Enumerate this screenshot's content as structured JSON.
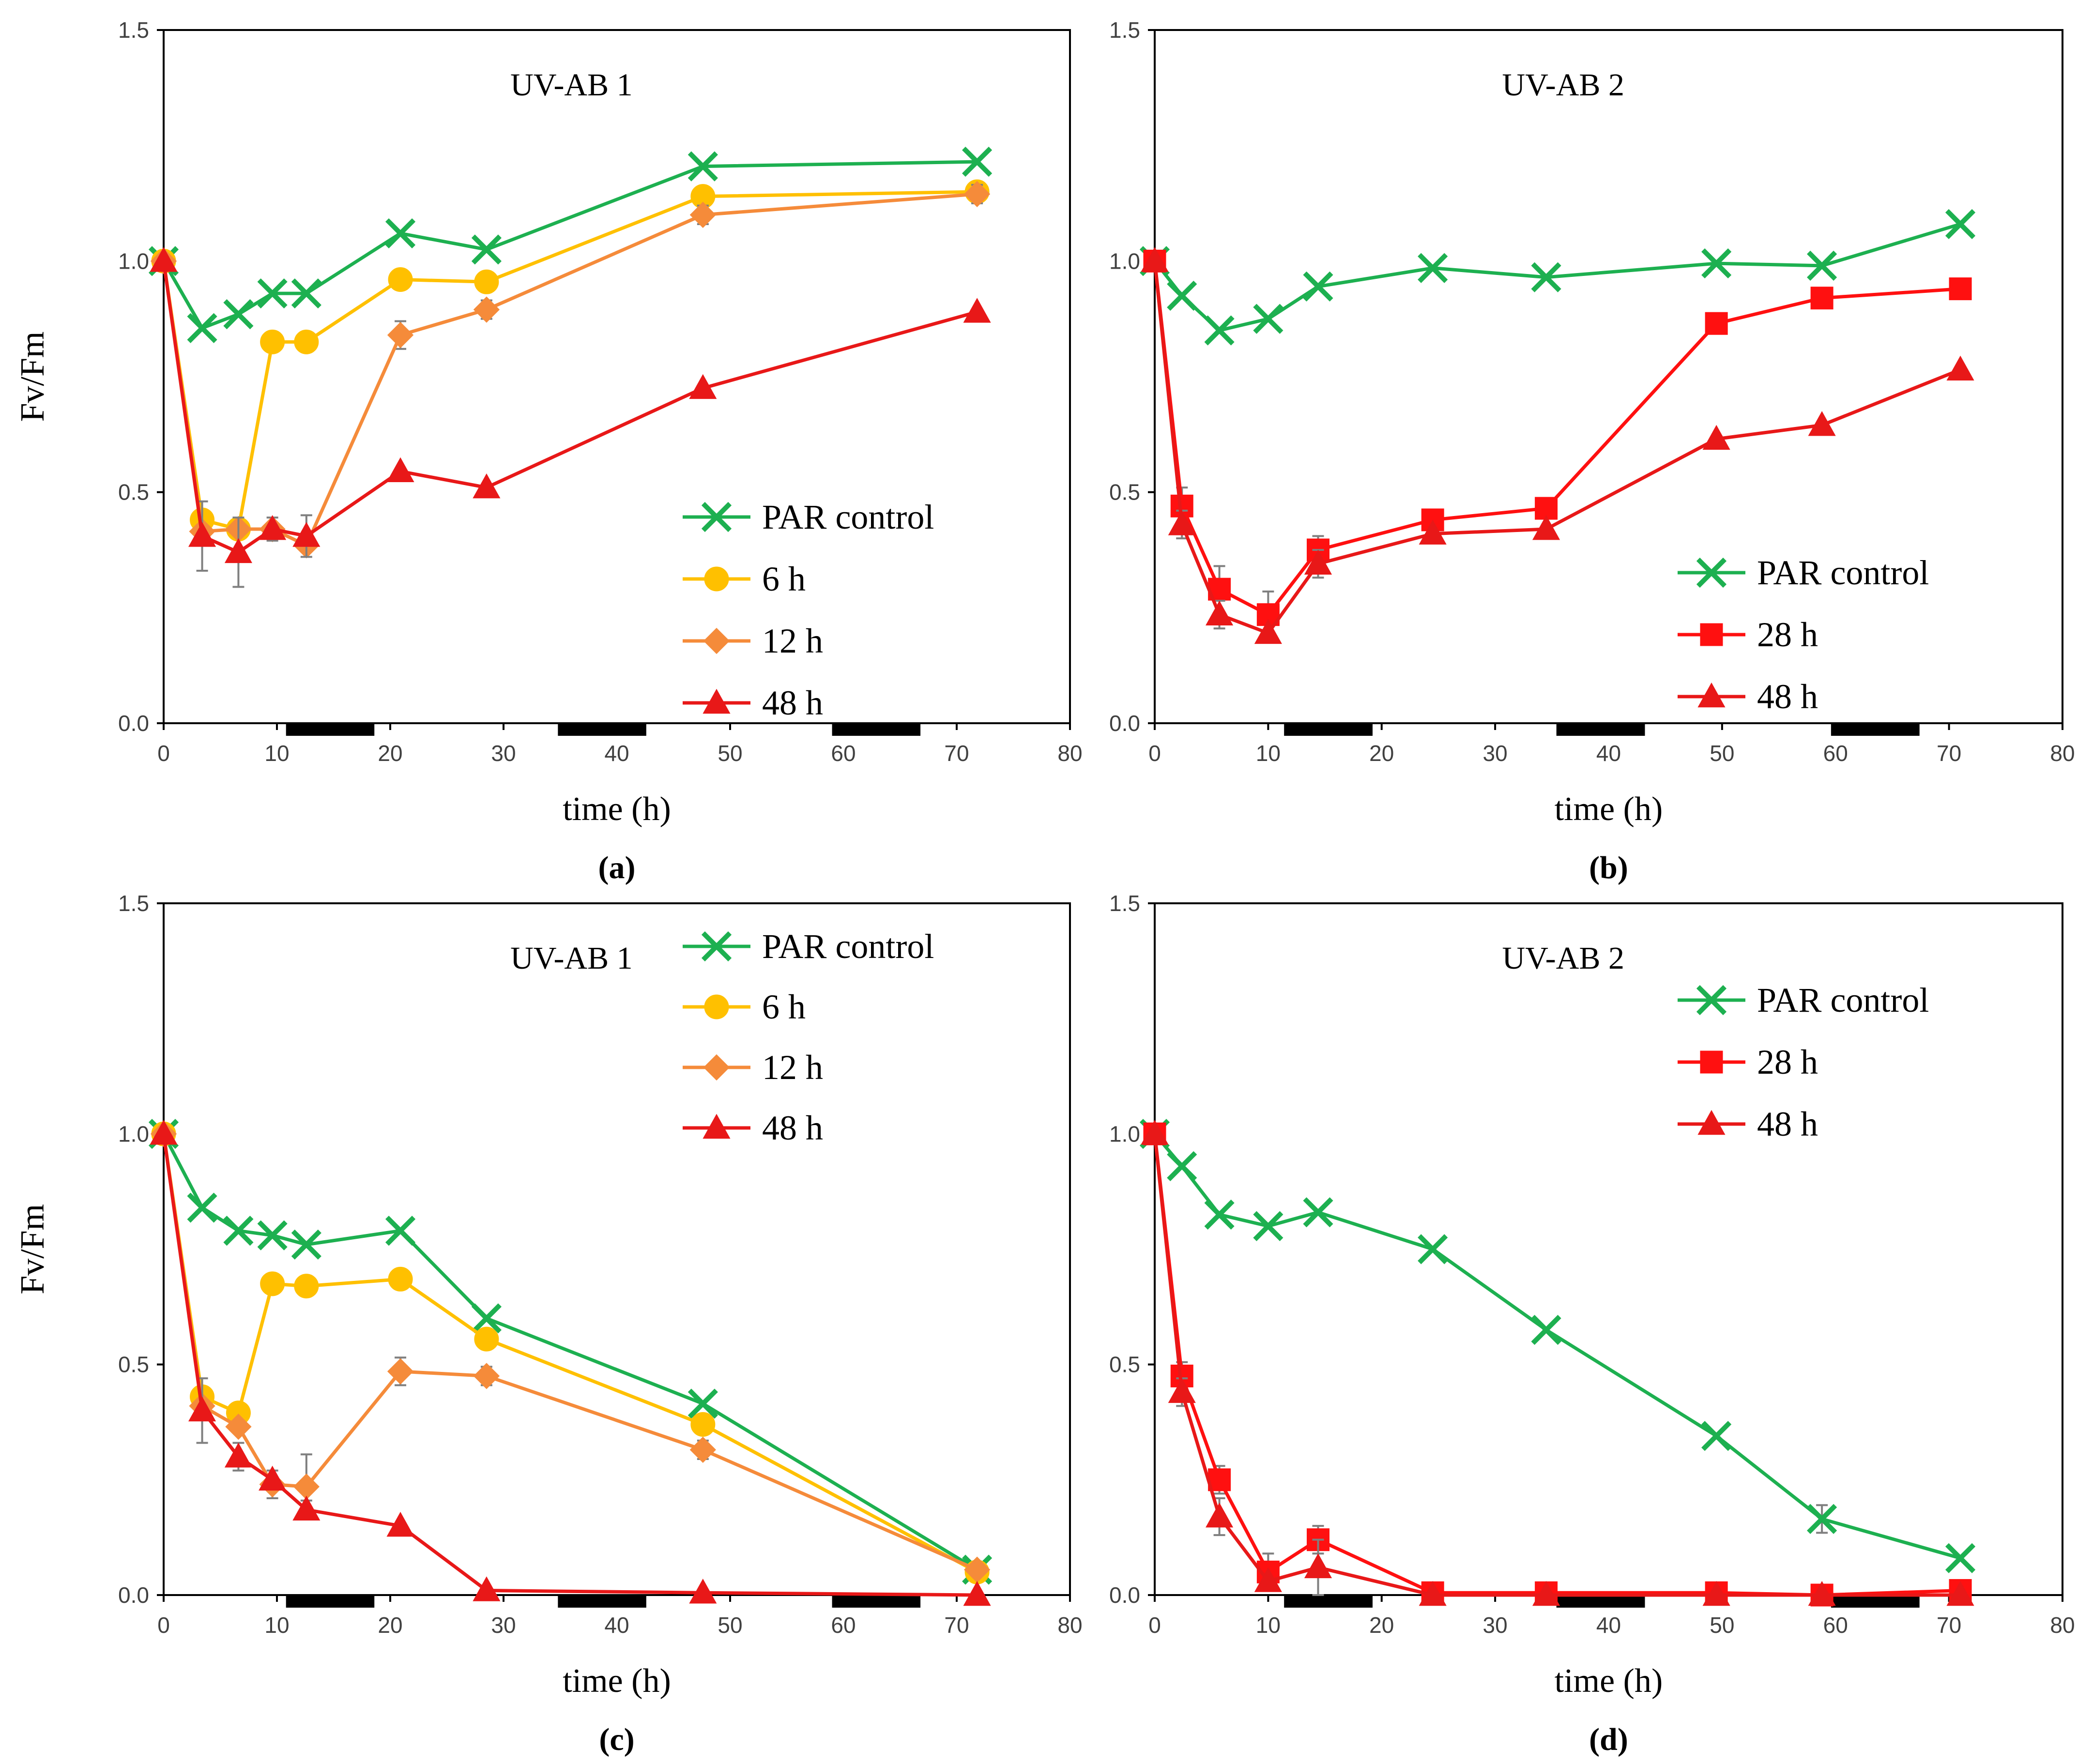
{
  "figure": {
    "colors": {
      "PAR control": "#1db050",
      "6 h": "#ffc000",
      "12 h": "#f58b3a",
      "28 h": "#ff1010",
      "48 h": "#e81818",
      "error": "#7f7f7f",
      "dark_bar": "#000000"
    }
  },
  "chart_data": [
    {
      "type": "line",
      "panel_label": "(a)",
      "title": "UV-AB 1",
      "xlabel": "time (h)",
      "ylabel": "Fv/Fm",
      "xlim": [
        0,
        80
      ],
      "ylim": [
        0,
        1.5
      ],
      "xticks": [
        "0",
        "10",
        "20",
        "30",
        "40",
        "50",
        "60",
        "70",
        "80"
      ],
      "yticks": [
        "0.0",
        "0.5",
        "1.0",
        "1.5"
      ],
      "legend_position": "bottom-right",
      "dark_periods": [
        [
          10.8,
          18.6
        ],
        [
          34.8,
          42.6
        ],
        [
          59.0,
          66.8
        ]
      ],
      "series": [
        {
          "name": "PAR control",
          "marker": "x",
          "x": [
            0,
            3.4,
            6.6,
            9.6,
            12.6,
            20.9,
            28.5,
            47.6,
            71.8
          ],
          "values": [
            1.0,
            0.855,
            0.885,
            0.93,
            0.93,
            1.06,
            1.025,
            1.205,
            1.215
          ]
        },
        {
          "name": "6 h",
          "marker": "circle",
          "x": [
            0,
            3.4,
            6.6,
            9.6,
            12.6,
            20.9,
            28.5,
            47.6,
            71.8
          ],
          "values": [
            1.0,
            0.44,
            0.42,
            0.825,
            0.825,
            0.96,
            0.955,
            1.14,
            1.15
          ]
        },
        {
          "name": "12 h",
          "marker": "diamond",
          "x": [
            0,
            3.4,
            6.6,
            9.6,
            12.6,
            20.9,
            28.5,
            47.6,
            71.8
          ],
          "values": [
            1.0,
            0.415,
            0.42,
            0.42,
            0.385,
            0.84,
            0.895,
            1.1,
            1.145
          ],
          "errors": [
            0,
            0,
            0,
            0,
            0,
            0.03,
            0.02,
            0.02,
            0.02
          ]
        },
        {
          "name": "48 h",
          "marker": "triangle",
          "x": [
            0,
            3.4,
            6.6,
            9.6,
            12.6,
            20.9,
            28.5,
            47.6,
            71.8
          ],
          "values": [
            1.0,
            0.405,
            0.37,
            0.42,
            0.405,
            0.545,
            0.51,
            0.725,
            0.89
          ],
          "errors": [
            0,
            0.075,
            0.075,
            0.025,
            0.045,
            0,
            0,
            0,
            0
          ]
        }
      ]
    },
    {
      "type": "line",
      "panel_label": "(b)",
      "title": "UV-AB 2",
      "xlabel": "time (h)",
      "ylabel": "",
      "xlim": [
        0,
        80
      ],
      "ylim": [
        0,
        1.5
      ],
      "xticks": [
        "0",
        "10",
        "20",
        "30",
        "40",
        "50",
        "60",
        "70",
        "80"
      ],
      "yticks": [
        "0.0",
        "0.5",
        "1.0",
        "1.5"
      ],
      "legend_position": "bottom-right",
      "dark_periods": [
        [
          11.4,
          19.2
        ],
        [
          35.4,
          43.2
        ],
        [
          59.6,
          67.4
        ]
      ],
      "series": [
        {
          "name": "PAR control",
          "marker": "x",
          "x": [
            0,
            2.4,
            5.7,
            10.0,
            14.4,
            24.5,
            34.5,
            49.5,
            58.8,
            71.0
          ],
          "values": [
            1.0,
            0.925,
            0.85,
            0.875,
            0.945,
            0.985,
            0.965,
            0.995,
            0.99,
            1.08
          ]
        },
        {
          "name": "28 h",
          "marker": "square",
          "x": [
            0,
            2.4,
            5.7,
            10.0,
            14.4,
            24.5,
            34.5,
            49.5,
            58.8,
            71.0
          ],
          "values": [
            1.0,
            0.47,
            0.29,
            0.235,
            0.375,
            0.44,
            0.465,
            0.865,
            0.92,
            0.94
          ],
          "errors": [
            0,
            0.04,
            0.05,
            0.05,
            0.03,
            0.02,
            0,
            0,
            0,
            0
          ]
        },
        {
          "name": "48 h",
          "marker": "triangle",
          "x": [
            0,
            2.4,
            5.7,
            10.0,
            14.4,
            24.5,
            34.5,
            49.5,
            58.8,
            71.0
          ],
          "values": [
            1.0,
            0.43,
            0.235,
            0.195,
            0.345,
            0.41,
            0.42,
            0.615,
            0.645,
            0.765
          ],
          "errors": [
            0,
            0.03,
            0.03,
            0,
            0.03,
            0,
            0,
            0,
            0,
            0
          ]
        }
      ]
    },
    {
      "type": "line",
      "panel_label": "(c)",
      "title": "UV-AB 1",
      "xlabel": "time (h)",
      "ylabel": "Fv/Fm",
      "xlim": [
        0,
        80
      ],
      "ylim": [
        0,
        1.5
      ],
      "xticks": [
        "0",
        "10",
        "20",
        "30",
        "40",
        "50",
        "60",
        "70",
        "80"
      ],
      "yticks": [
        "0.0",
        "0.5",
        "1.0",
        "1.5"
      ],
      "legend_position": "top-right",
      "dark_periods": [
        [
          10.8,
          18.6
        ],
        [
          34.8,
          42.6
        ],
        [
          59.0,
          66.8
        ]
      ],
      "series": [
        {
          "name": "PAR control",
          "marker": "x",
          "x": [
            0,
            3.4,
            6.6,
            9.6,
            12.6,
            20.9,
            28.5,
            47.6,
            71.8
          ],
          "values": [
            1.0,
            0.84,
            0.79,
            0.78,
            0.76,
            0.79,
            0.6,
            0.415,
            0.055
          ]
        },
        {
          "name": "6 h",
          "marker": "circle",
          "x": [
            0,
            3.4,
            6.6,
            9.6,
            12.6,
            20.9,
            28.5,
            47.6,
            71.8
          ],
          "values": [
            1.0,
            0.43,
            0.395,
            0.675,
            0.67,
            0.685,
            0.555,
            0.37,
            0.05
          ]
        },
        {
          "name": "12 h",
          "marker": "diamond",
          "x": [
            0,
            3.4,
            6.6,
            9.6,
            12.6,
            20.9,
            28.5,
            47.6,
            71.8
          ],
          "values": [
            1.0,
            0.41,
            0.365,
            0.24,
            0.235,
            0.485,
            0.475,
            0.315,
            0.055
          ],
          "errors": [
            0,
            0,
            0,
            0.03,
            0.07,
            0.03,
            0.02,
            0.02,
            0
          ]
        },
        {
          "name": "48 h",
          "marker": "triangle",
          "x": [
            0,
            3.4,
            6.6,
            9.6,
            12.6,
            20.9,
            28.5,
            47.6,
            71.8
          ],
          "values": [
            1.0,
            0.4,
            0.3,
            0.25,
            0.185,
            0.15,
            0.01,
            0.005,
            0.0
          ],
          "errors": [
            0,
            0.07,
            0.03,
            0,
            0.02,
            0,
            0,
            0,
            0
          ]
        }
      ]
    },
    {
      "type": "line",
      "panel_label": "(d)",
      "title": "UV-AB 2",
      "xlabel": "time (h)",
      "ylabel": "",
      "xlim": [
        0,
        80
      ],
      "ylim": [
        0,
        1.5
      ],
      "xticks": [
        "0",
        "10",
        "20",
        "30",
        "40",
        "50",
        "60",
        "70",
        "80"
      ],
      "yticks": [
        "0.0",
        "0.5",
        "1.0",
        "1.5"
      ],
      "legend_position": "top-right",
      "dark_periods": [
        [
          11.4,
          19.2
        ],
        [
          35.4,
          43.2
        ],
        [
          59.6,
          67.4
        ]
      ],
      "series": [
        {
          "name": "PAR control",
          "marker": "x",
          "x": [
            0,
            2.4,
            5.7,
            10.0,
            14.4,
            24.5,
            34.5,
            49.5,
            58.8,
            71.0
          ],
          "values": [
            1.0,
            0.93,
            0.825,
            0.8,
            0.83,
            0.75,
            0.575,
            0.345,
            0.165,
            0.08
          ],
          "errors": [
            0,
            0,
            0,
            0,
            0,
            0,
            0,
            0,
            0.03,
            0
          ]
        },
        {
          "name": "28 h",
          "marker": "square",
          "x": [
            0,
            2.4,
            5.7,
            10.0,
            14.4,
            24.5,
            34.5,
            49.5,
            58.8,
            71.0
          ],
          "values": [
            1.0,
            0.475,
            0.25,
            0.05,
            0.12,
            0.005,
            0.005,
            0.005,
            0.0,
            0.01
          ],
          "errors": [
            0,
            0.03,
            0.03,
            0.04,
            0.03,
            0,
            0,
            0,
            0,
            0
          ]
        },
        {
          "name": "48 h",
          "marker": "triangle",
          "x": [
            0,
            2.4,
            5.7,
            10.0,
            14.4,
            24.5,
            34.5,
            49.5,
            58.8,
            71.0
          ],
          "values": [
            1.0,
            0.44,
            0.17,
            0.03,
            0.06,
            0.0,
            0.0,
            0.0,
            0.0,
            0.0
          ],
          "errors": [
            0,
            0.03,
            0.04,
            0,
            0.06,
            0,
            0,
            0,
            0,
            0
          ]
        }
      ]
    }
  ]
}
